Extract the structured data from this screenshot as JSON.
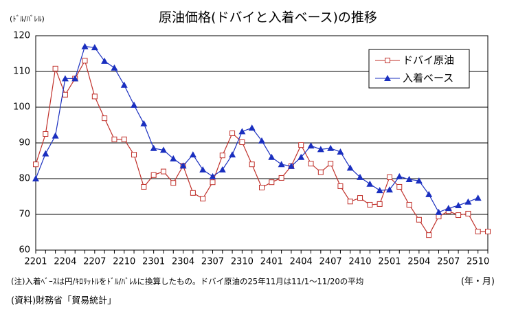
{
  "chart_data": {
    "type": "line",
    "title": "原油価格(ドバイと入着ベース)の推移",
    "y_label": "(ﾄﾞﾙ/ﾊﾞﾚﾙ)",
    "x_label": "(年・月)",
    "notes": [
      "(注)入着ﾍﾞｰｽは円/ｷﾛﾘｯﾄﾙをﾄﾞﾙ/ﾊﾞﾚﾙに換算したもの。ドバイ原油の25年11月は11/1～11/20の平均",
      "(資料)財務省「貿易統計」"
    ],
    "categories": [
      "2201",
      null,
      null,
      "2204",
      null,
      null,
      "2207",
      null,
      null,
      "2210",
      null,
      null,
      "2301",
      null,
      null,
      "2304",
      null,
      null,
      "2307",
      null,
      null,
      "2310",
      null,
      null,
      "2401",
      null,
      null,
      "2404",
      null,
      null,
      "2407",
      null,
      null,
      "2410",
      null,
      null,
      "2501",
      null,
      null,
      "2504",
      null,
      null,
      "2507",
      null,
      null,
      "2510",
      null
    ],
    "series": [
      {
        "name": "ドバイ原油",
        "color": "#c0302a",
        "marker": "square",
        "values": [
          84,
          92.5,
          110.8,
          103.5,
          108,
          113,
          103,
          96.9,
          91,
          91,
          86.7,
          77.7,
          81,
          82,
          78.8,
          83.6,
          76,
          74.4,
          79,
          86.5,
          92.7,
          90.2,
          84,
          77.5,
          79,
          80.2,
          83.5,
          89.4,
          84.2,
          81.8,
          84.2,
          77.9,
          73.6,
          74.6,
          72.7,
          72.9,
          80.4,
          77.7,
          72.7,
          68.5,
          64.2,
          69.4,
          70.9,
          69.8,
          70.2,
          65.2,
          65.2
        ]
      },
      {
        "name": "入着ベース",
        "color": "#1a2fbf",
        "marker": "triangle",
        "values": [
          80,
          87,
          92,
          108,
          108,
          117,
          116.7,
          112.9,
          111,
          106.2,
          100.6,
          95.4,
          88.5,
          88,
          85.6,
          83.6,
          86.7,
          82.5,
          80.6,
          82.5,
          86.7,
          93.2,
          94.2,
          90.6,
          86,
          84,
          83.5,
          86,
          89.2,
          88.2,
          88.5,
          87.5,
          83,
          80.4,
          78.5,
          76.7,
          76.9,
          80.6,
          79.8,
          79.4,
          75.6,
          70.6,
          71.7,
          72.5,
          73.5,
          74.6,
          null
        ]
      }
    ],
    "ylim": [
      60,
      120
    ],
    "yticks": [
      60,
      70,
      80,
      90,
      100,
      110,
      120
    ],
    "grid": true,
    "legend": "upper right"
  }
}
